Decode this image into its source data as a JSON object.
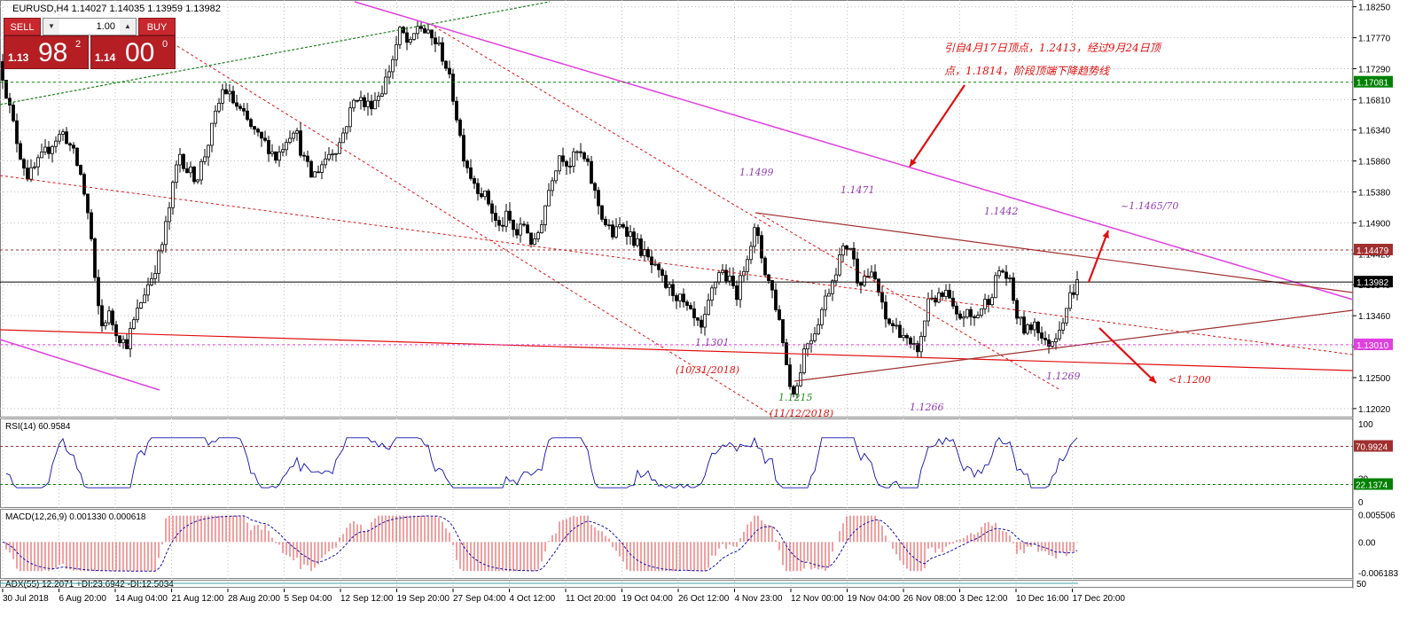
{
  "window_title": "EURUSD,H4",
  "ohlc": "1.14027 1.14035 1.13959 1.13982",
  "trade_panel": {
    "sell_label": "SELL",
    "buy_label": "BUY",
    "lot": "1.00",
    "sell_prefix": "1.13",
    "sell_big": "98",
    "sell_sup": "2",
    "buy_prefix": "1.14",
    "buy_big": "00",
    "buy_sup": "0"
  },
  "colors": {
    "candle": "#000000",
    "grid": "#c0c0c0",
    "main_trend": "#e040e0",
    "red_line": "#e01010",
    "brown_line": "#a03030",
    "annotation_red": "#e01010",
    "annotation_purple": "#9040b0",
    "rsi_line": "#1010b0",
    "macd_hist": "#e04040",
    "macd_signal": "#1010b0",
    "green_level": "#008000"
  },
  "chart_data": [
    {
      "type": "candlestick",
      "symbol": "EURUSD",
      "timeframe": "H4",
      "ylim": [
        1.1195,
        1.183
      ],
      "y_ticks": [
        "1.18250",
        "1.17770",
        "1.17290",
        "1.16810",
        "1.16340",
        "1.15860",
        "1.15380",
        "1.14900",
        "1.14420",
        "1.13940",
        "1.13460",
        "1.12980",
        "1.12500",
        "1.12020"
      ],
      "x_ticks": [
        "30 Jul 2018",
        "6 Aug 20:00",
        "14 Aug 04:00",
        "21 Aug 12:00",
        "28 Aug 20:00",
        "5 Sep 04:00",
        "12 Sep 12:00",
        "19 Sep 20:00",
        "27 Sep 04:00",
        "4 Oct 12:00",
        "11 Oct 20:00",
        "19 Oct 04:00",
        "26 Oct 12:00",
        "4 Nov 23:00",
        "12 Nov 00:00",
        "19 Nov 04:00",
        "26 Nov 08:00",
        "3 Dec 12:00",
        "10 Dec 16:00",
        "17 Dec 20:00"
      ],
      "price_labels": [
        {
          "value": 1.17081,
          "text": "1.17081",
          "color": "#008000"
        },
        {
          "value": 1.14479,
          "text": "1.14479",
          "color": "#a03030"
        },
        {
          "value": 1.13982,
          "text": "1.13982",
          "color": "#000000"
        },
        {
          "value": 1.1301,
          "text": "1.13010",
          "color": "#e040e0"
        }
      ],
      "swing_points": [
        {
          "label": "1.1499",
          "price": 1.1499
        },
        {
          "label": "1.1471",
          "price": 1.1471
        },
        {
          "label": "1.1442",
          "price": 1.1442
        },
        {
          "label": "1.1301",
          "price": 1.1301
        },
        {
          "label": "1.1215",
          "price": 1.1215,
          "date": "(11/12/2018)"
        },
        {
          "label": "1.1266",
          "price": 1.1266
        },
        {
          "label": "1.1269",
          "price": 1.1269
        }
      ],
      "annotations": [
        {
          "text": "(10/31/2018)"
        },
        {
          "text": "~1.1465/70"
        },
        {
          "text": "<1.1200"
        },
        {
          "text": "引自4月17日顶点，1.2413，经过9月24日顶"
        },
        {
          "text": "点，1.1814，阶段顶端下降趋势线"
        }
      ],
      "series": [
        {
          "points": [
            [
              0,
              1.174
            ],
            [
              12,
              1.166
            ],
            [
              22,
              1.16
            ],
            [
              32,
              1.156
            ],
            [
              42,
              1.158
            ],
            [
              52,
              1.16
            ],
            [
              62,
              1.162
            ],
            [
              72,
              1.163
            ],
            [
              82,
              1.16
            ],
            [
              92,
              1.156
            ],
            [
              102,
              1.148
            ],
            [
              108,
              1.138
            ],
            [
              115,
              1.133
            ],
            [
              122,
              1.135
            ],
            [
              132,
              1.132
            ],
            [
              142,
              1.13
            ],
            [
              152,
              1.134
            ],
            [
              162,
              1.138
            ],
            [
              172,
              1.141
            ],
            [
              182,
              1.145
            ],
            [
              192,
              1.152
            ],
            [
              202,
              1.16
            ],
            [
              212,
              1.157
            ],
            [
              222,
              1.156
            ],
            [
              232,
              1.16
            ],
            [
              242,
              1.165
            ],
            [
              252,
              1.17
            ],
            [
              262,
              1.168
            ],
            [
              272,
              1.166
            ],
            [
              282,
              1.164
            ],
            [
              292,
              1.162
            ],
            [
              302,
              1.161
            ],
            [
              312,
              1.159
            ],
            [
              322,
              1.162
            ],
            [
              332,
              1.164
            ],
            [
              342,
              1.159
            ],
            [
              352,
              1.156
            ],
            [
              362,
              1.158
            ],
            [
              372,
              1.16
            ],
            [
              382,
              1.161
            ],
            [
              392,
              1.165
            ],
            [
              402,
              1.169
            ],
            [
              412,
              1.167
            ],
            [
              422,
              1.168
            ],
            [
              432,
              1.17
            ],
            [
              442,
              1.174
            ],
            [
              452,
              1.179
            ],
            [
              462,
              1.176
            ],
            [
              472,
              1.18
            ],
            [
              482,
              1.178
            ],
            [
              492,
              1.177
            ],
            [
              502,
              1.174
            ],
            [
              512,
              1.168
            ],
            [
              522,
              1.16
            ],
            [
              532,
              1.156
            ],
            [
              542,
              1.154
            ],
            [
              552,
              1.152
            ],
            [
              562,
              1.148
            ],
            [
              572,
              1.15
            ],
            [
              582,
              1.147
            ],
            [
              592,
              1.149
            ],
            [
              602,
              1.145
            ],
            [
              612,
              1.15
            ],
            [
              622,
              1.156
            ],
            [
              632,
              1.16
            ],
            [
              642,
              1.158
            ],
            [
              652,
              1.16
            ],
            [
              662,
              1.158
            ],
            [
              672,
              1.153
            ],
            [
              682,
              1.149
            ],
            [
              692,
              1.147
            ],
            [
              702,
              1.149
            ],
            [
              712,
              1.147
            ],
            [
              722,
              1.145
            ],
            [
              732,
              1.143
            ],
            [
              742,
              1.141
            ],
            [
              752,
              1.139
            ],
            [
              762,
              1.138
            ],
            [
              772,
              1.136
            ],
            [
              782,
              1.134
            ],
            [
              792,
              1.132
            ],
            [
              802,
              1.138
            ],
            [
              812,
              1.142
            ],
            [
              822,
              1.14
            ],
            [
              832,
              1.138
            ],
            [
              842,
              1.144
            ],
            [
              852,
              1.148
            ],
            [
              862,
              1.142
            ],
            [
              872,
              1.138
            ],
            [
              882,
              1.132
            ],
            [
              890,
              1.124
            ],
            [
              898,
              1.123
            ],
            [
              908,
              1.13
            ],
            [
              918,
              1.132
            ],
            [
              928,
              1.136
            ],
            [
              938,
              1.14
            ],
            [
              948,
              1.144
            ],
            [
              958,
              1.146
            ],
            [
              968,
              1.14
            ],
            [
              978,
              1.141
            ],
            [
              988,
              1.14
            ],
            [
              998,
              1.134
            ],
            [
              1008,
              1.133
            ],
            [
              1018,
              1.132
            ],
            [
              1028,
              1.129
            ],
            [
              1038,
              1.13
            ],
            [
              1048,
              1.138
            ],
            [
              1058,
              1.137
            ],
            [
              1068,
              1.138
            ],
            [
              1078,
              1.134
            ],
            [
              1088,
              1.135
            ],
            [
              1098,
              1.134
            ],
            [
              1108,
              1.136
            ],
            [
              1118,
              1.138
            ],
            [
              1128,
              1.142
            ],
            [
              1138,
              1.14
            ],
            [
              1148,
              1.134
            ],
            [
              1158,
              1.132
            ],
            [
              1168,
              1.134
            ],
            [
              1178,
              1.13
            ],
            [
              1188,
              1.131
            ],
            [
              1198,
              1.134
            ],
            [
              1208,
              1.138
            ],
            [
              1216,
              1.1398
            ]
          ]
        }
      ]
    },
    {
      "type": "line",
      "title": "RSI(14) 60.9584",
      "ylim": [
        0,
        100
      ],
      "y_ticks": [
        "100",
        "30",
        "0"
      ],
      "levels": [
        {
          "value": 70.9924,
          "text": "70.9924"
        },
        {
          "value": 22.1374,
          "text": "22.1374"
        }
      ]
    },
    {
      "type": "bar",
      "title": "MACD(12,26,9) 0.001330 0.000618",
      "ylim": [
        -0.0062,
        0.0056
      ],
      "y_ticks": [
        "0.005506",
        "0.00",
        "-0.006183"
      ]
    },
    {
      "type": "line",
      "title": "ADX(55) 12.2071 +DI:23.6942 -DI:12.5034",
      "y_ticks": [
        "50"
      ]
    }
  ]
}
